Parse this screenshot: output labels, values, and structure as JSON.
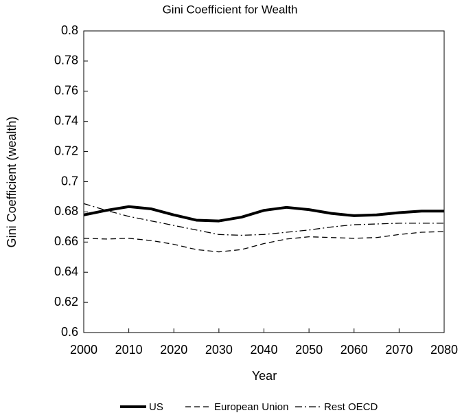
{
  "chart_data": {
    "type": "line",
    "title": "Gini Coefficient for Wealth",
    "x_label": "Year",
    "y_label": "Gini Coefficient (wealth)",
    "x": [
      2000,
      2005,
      2010,
      2015,
      2020,
      2025,
      2030,
      2035,
      2040,
      2045,
      2050,
      2055,
      2060,
      2065,
      2070,
      2075,
      2080
    ],
    "series": [
      {
        "name": "US",
        "color": "#000000",
        "style": "solid",
        "values": [
          0.678,
          0.681,
          0.6835,
          0.682,
          0.678,
          0.6745,
          0.674,
          0.6765,
          0.681,
          0.683,
          0.6815,
          0.679,
          0.6775,
          0.678,
          0.6795,
          0.6805,
          0.6805
        ]
      },
      {
        "name": "European Union",
        "color": "#000000",
        "style": "dashed",
        "values": [
          0.6625,
          0.662,
          0.6625,
          0.661,
          0.6585,
          0.655,
          0.6535,
          0.655,
          0.659,
          0.662,
          0.6635,
          0.663,
          0.6625,
          0.663,
          0.665,
          0.6665,
          0.667
        ]
      },
      {
        "name": "Rest OECD",
        "color": "#000000",
        "style": "dashdot",
        "values": [
          0.6855,
          0.681,
          0.677,
          0.674,
          0.671,
          0.668,
          0.665,
          0.6645,
          0.665,
          0.6665,
          0.668,
          0.67,
          0.6715,
          0.672,
          0.6725,
          0.6725,
          0.6725
        ]
      }
    ],
    "xlim": [
      2000,
      2080
    ],
    "xticks": [
      2000,
      2010,
      2020,
      2030,
      2040,
      2050,
      2060,
      2070,
      2080
    ],
    "ylim": [
      0.6,
      0.8
    ],
    "yticks": [
      0.6,
      0.62,
      0.64,
      0.66,
      0.68,
      0.7,
      0.72,
      0.74,
      0.76,
      0.78,
      0.8
    ],
    "legend": "bottom",
    "grid": false
  }
}
